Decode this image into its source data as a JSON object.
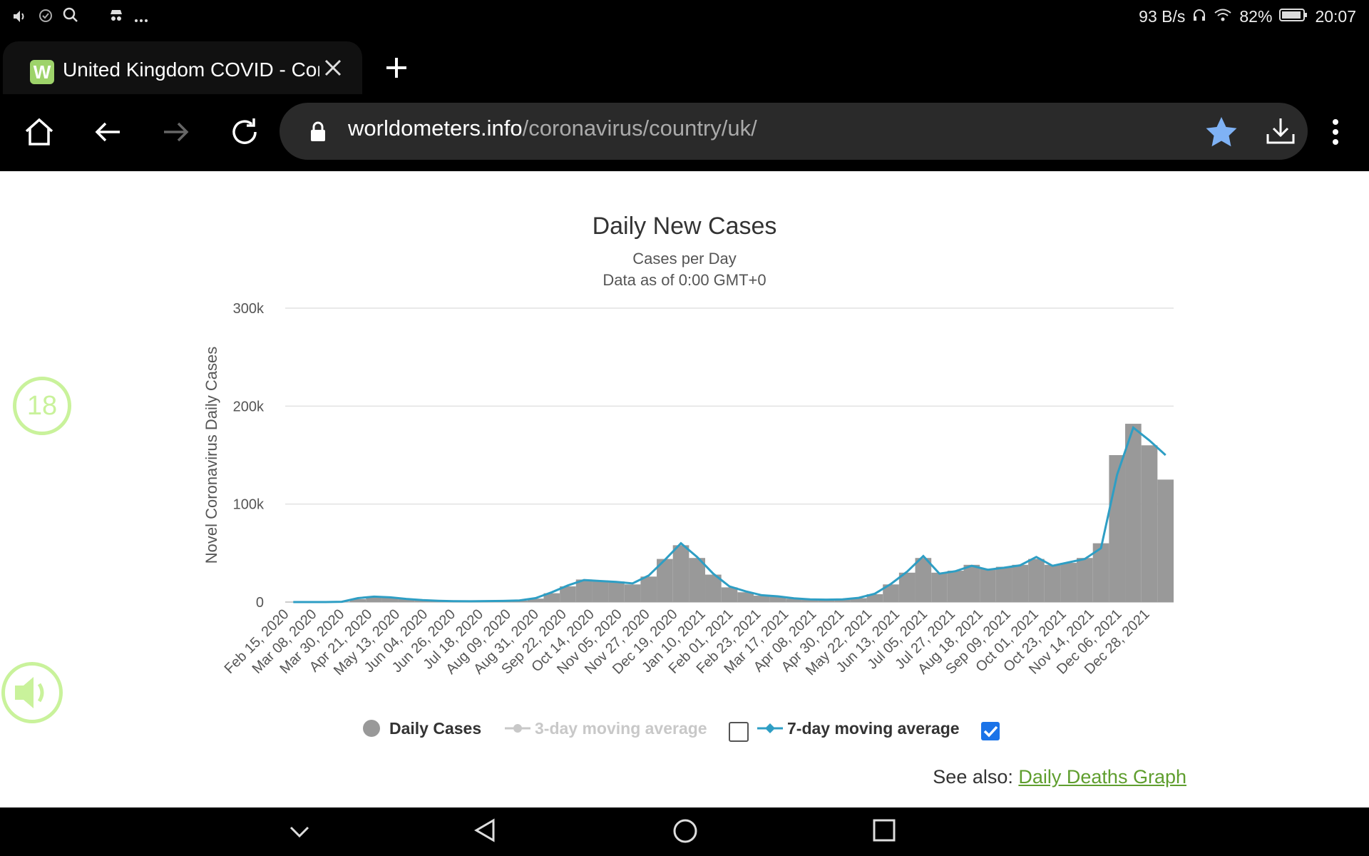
{
  "status_bar": {
    "network_speed": "93 B/s",
    "battery": "82%",
    "time": "20:07",
    "left_icons": [
      "volume-icon",
      "dnd-icon",
      "search-icon",
      "incognito-icon",
      "more-icon"
    ],
    "right_icons": [
      "headphones-icon",
      "wifi-icon",
      "battery-icon"
    ]
  },
  "browser": {
    "tab_title": "United Kingdom COVID - Coronavirus",
    "new_tab_label": "+",
    "url_domain": "worldometers.info",
    "url_path": "/coronavirus/country/uk/",
    "toolbar_icons": [
      "home-icon",
      "back-icon",
      "forward-icon",
      "reload-icon",
      "lock-icon",
      "star-icon",
      "download-icon",
      "menu-icon"
    ]
  },
  "page": {
    "chart_title": "Daily New Cases",
    "chart_subtitle": "Cases per Day",
    "chart_subtitle2": "Data as of 0:00 GMT+0",
    "y_axis_label": "Novel Coronavirus Daily Cases",
    "see_also_label": "See also:",
    "see_also_link": "Daily Deaths Graph",
    "side_bubble_number": "18"
  },
  "legend": [
    {
      "label": "Daily Cases",
      "color": "#999999",
      "enabled": true
    },
    {
      "label": "3-day moving average",
      "color": "#c8c8c8",
      "enabled": false,
      "checkbox_checked": false
    },
    {
      "label": "7-day moving average",
      "color": "#2e9ec4",
      "enabled": true,
      "checkbox_checked": true
    }
  ],
  "colors": {
    "bars": "#999999",
    "avg_line": "#2e9ec4",
    "link": "#5f9e2e",
    "side_widget": "#c9f29b"
  },
  "chart_data": {
    "type": "bar",
    "title": "Daily New Cases",
    "subtitle": "Cases per Day",
    "ylabel": "Novel Coronavirus Daily Cases",
    "xlabel": "",
    "ylim": [
      0,
      300000
    ],
    "y_ticks": [
      "0",
      "100k",
      "200k",
      "300k"
    ],
    "x_ticks": [
      "Feb 15, 2020",
      "Mar 08, 2020",
      "Mar 30, 2020",
      "Apr 21, 2020",
      "May 13, 2020",
      "Jun 04, 2020",
      "Jun 26, 2020",
      "Jul 18, 2020",
      "Aug 09, 2020",
      "Aug 31, 2020",
      "Sep 22, 2020",
      "Oct 14, 2020",
      "Nov 05, 2020",
      "Nov 27, 2020",
      "Dec 19, 2020",
      "Jan 10, 2021",
      "Feb 01, 2021",
      "Feb 23, 2021",
      "Mar 17, 2021",
      "Apr 08, 2021",
      "Apr 30, 2021",
      "May 22, 2021",
      "Jun 13, 2021",
      "Jul 05, 2021",
      "Jul 27, 2021",
      "Aug 18, 2021",
      "Sep 09, 2021",
      "Oct 01, 2021",
      "Oct 23, 2021",
      "Nov 14, 2021",
      "Dec 06, 2021",
      "Dec 28, 2021"
    ],
    "series": [
      {
        "name": "Daily Cases",
        "values": [
          0,
          0,
          0,
          200,
          3000,
          5000,
          4500,
          3000,
          1800,
          1200,
          800,
          700,
          900,
          1100,
          1500,
          3500,
          9000,
          16000,
          23000,
          22000,
          21000,
          18000,
          26000,
          44000,
          58000,
          45000,
          28000,
          15000,
          10000,
          6500,
          5500,
          3500,
          2500,
          2300,
          2600,
          4000,
          8000,
          18000,
          30000,
          45000,
          30000,
          32000,
          38000,
          34000,
          36000,
          38000,
          44000,
          38000,
          40000,
          45000,
          60000,
          150000,
          182000,
          160000,
          125000
        ]
      },
      {
        "name": "7-day moving average",
        "values": [
          0,
          0,
          0,
          300,
          4000,
          5500,
          4800,
          3200,
          2000,
          1300,
          900,
          800,
          1000,
          1200,
          1700,
          4000,
          10000,
          17000,
          22500,
          21500,
          20500,
          19000,
          27000,
          43000,
          60000,
          46000,
          29000,
          16000,
          11000,
          7000,
          5800,
          3800,
          2700,
          2500,
          2800,
          4300,
          8500,
          18500,
          31000,
          47000,
          29000,
          31500,
          37000,
          33000,
          35000,
          37500,
          46000,
          37000,
          40500,
          44000,
          55000,
          130000,
          178000,
          165000,
          150000
        ]
      }
    ]
  }
}
